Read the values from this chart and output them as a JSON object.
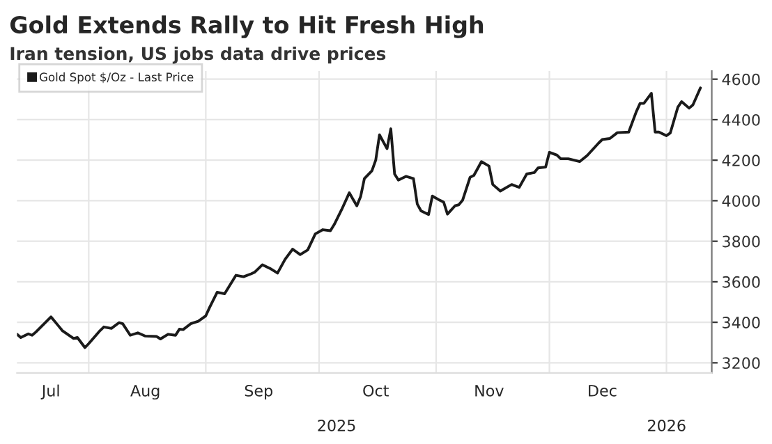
{
  "chart_data": {
    "type": "line",
    "title": "Gold Extends Rally to Hit Fresh High",
    "subtitle": "Iran tension, US jobs data drive prices",
    "x": [
      "2025-07-13",
      "2025-07-14",
      "2025-07-16",
      "2025-07-17",
      "2025-07-18",
      "2025-07-22",
      "2025-07-24",
      "2025-07-25",
      "2025-07-28",
      "2025-07-29",
      "2025-07-31",
      "2025-08-01",
      "2025-08-04",
      "2025-08-05",
      "2025-08-07",
      "2025-08-09",
      "2025-08-10",
      "2025-08-12",
      "2025-08-14",
      "2025-08-16",
      "2025-08-19",
      "2025-08-20",
      "2025-08-22",
      "2025-08-24",
      "2025-08-25",
      "2025-08-26",
      "2025-08-28",
      "2025-08-30",
      "2025-09-01",
      "2025-09-02",
      "2025-09-04",
      "2025-09-06",
      "2025-09-09",
      "2025-09-11",
      "2025-09-13",
      "2025-09-14",
      "2025-09-16",
      "2025-09-18",
      "2025-09-20",
      "2025-09-22",
      "2025-09-24",
      "2025-09-26",
      "2025-09-28",
      "2025-09-30",
      "2025-10-02",
      "2025-10-04",
      "2025-10-05",
      "2025-10-07",
      "2025-10-09",
      "2025-10-11",
      "2025-10-12",
      "2025-10-13",
      "2025-10-15",
      "2025-10-16",
      "2025-10-17",
      "2025-10-19",
      "2025-10-20",
      "2025-10-21",
      "2025-10-22",
      "2025-10-24",
      "2025-10-26",
      "2025-10-27",
      "2025-10-28",
      "2025-10-30",
      "2025-10-31",
      "2025-11-02",
      "2025-11-03",
      "2025-11-04",
      "2025-11-06",
      "2025-11-07",
      "2025-11-08",
      "2025-11-10",
      "2025-11-11",
      "2025-11-13",
      "2025-11-15",
      "2025-11-16",
      "2025-11-18",
      "2025-11-21",
      "2025-11-23",
      "2025-11-25",
      "2025-11-27",
      "2025-11-28",
      "2025-11-30",
      "2025-12-01",
      "2025-12-03",
      "2025-12-04",
      "2025-12-06",
      "2025-12-09",
      "2025-12-11",
      "2025-12-14",
      "2025-12-15",
      "2025-12-17",
      "2025-12-19",
      "2025-12-22",
      "2025-12-24",
      "2025-12-25",
      "2025-12-26",
      "2025-12-28",
      "2025-12-29",
      "2025-12-30",
      "2026-01-01",
      "2026-01-02",
      "2026-01-04",
      "2026-01-05",
      "2026-01-07",
      "2026-01-08",
      "2026-01-10"
    ],
    "series": [
      {
        "name": "Gold Spot $/Oz - Last Price",
        "color": "#1a1a1a",
        "values": [
          3341,
          3325,
          3343,
          3336,
          3352,
          3427,
          3382,
          3359,
          3320,
          3325,
          3275,
          3295,
          3359,
          3377,
          3370,
          3398,
          3393,
          3336,
          3348,
          3332,
          3330,
          3318,
          3341,
          3336,
          3366,
          3364,
          3393,
          3405,
          3432,
          3473,
          3548,
          3541,
          3632,
          3625,
          3639,
          3648,
          3684,
          3666,
          3643,
          3711,
          3761,
          3734,
          3757,
          3836,
          3857,
          3852,
          3882,
          3957,
          4039,
          3975,
          4020,
          4109,
          4148,
          4200,
          4325,
          4257,
          4355,
          4132,
          4102,
          4120,
          4109,
          3984,
          3950,
          3932,
          4023,
          4002,
          3993,
          3934,
          3975,
          3980,
          4002,
          4116,
          4125,
          4193,
          4171,
          4080,
          4048,
          4080,
          4066,
          4132,
          4139,
          4162,
          4166,
          4239,
          4225,
          4207,
          4207,
          4193,
          4223,
          4284,
          4302,
          4307,
          4336,
          4339,
          4439,
          4480,
          4480,
          4530,
          4339,
          4339,
          4321,
          4334,
          4461,
          4489,
          4457,
          4473,
          4557
        ]
      }
    ],
    "xlim": [
      "2025-07-13",
      "2026-01-13"
    ],
    "xticks": [
      {
        "value": "2025-07-22",
        "label": "Jul"
      },
      {
        "value": "2025-08-01",
        "label": null
      },
      {
        "value": "2025-08-16",
        "label": "Aug"
      },
      {
        "value": "2025-09-01",
        "label": null
      },
      {
        "value": "2025-09-15",
        "label": "Sep"
      },
      {
        "value": "2025-10-01",
        "label": null
      },
      {
        "value": "2025-10-16",
        "label": "Oct"
      },
      {
        "value": "2025-11-01",
        "label": null
      },
      {
        "value": "2025-11-15",
        "label": "Nov"
      },
      {
        "value": "2025-12-01",
        "label": null
      },
      {
        "value": "2025-12-15",
        "label": "Dec"
      },
      {
        "value": "2026-01-01",
        "label": null
      }
    ],
    "annotations": [
      "2025",
      "2026"
    ],
    "ylim": [
      3150,
      4640
    ],
    "yticks": [
      3200,
      3400,
      3600,
      3800,
      4000,
      4200,
      4400,
      4600
    ],
    "grid": true,
    "legend": "top left",
    "marker": "none",
    "line_style": "solid"
  }
}
